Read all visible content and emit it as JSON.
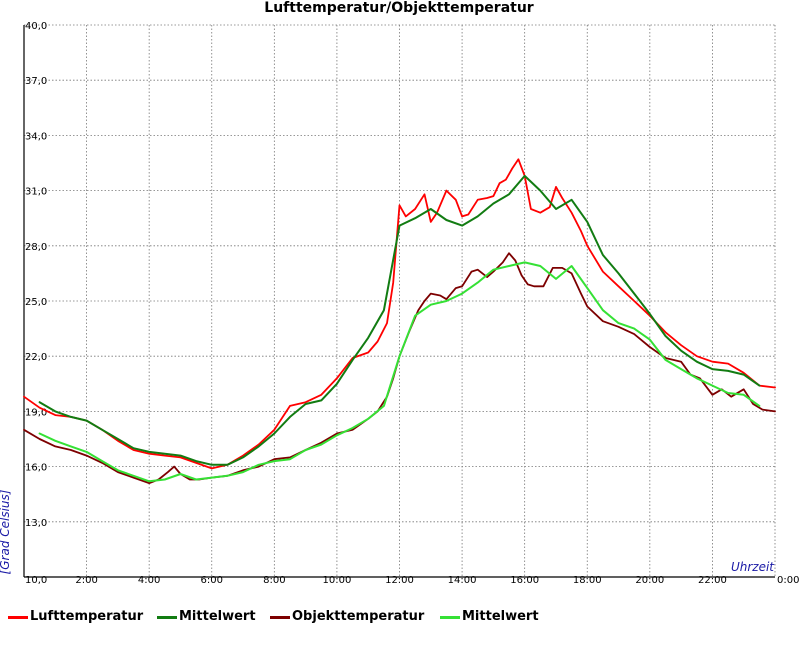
{
  "chart_data": {
    "type": "line",
    "title": "Lufttemperatur/Objekttemperatur",
    "xlabel": "Uhrzeit",
    "ylabel": "[Grad Celsius]",
    "xlim": [
      0,
      24
    ],
    "ylim": [
      10.0,
      40.0
    ],
    "x_ticks": [
      "",
      "2:00",
      "4:00",
      "6:00",
      "8:00",
      "10:00",
      "12:00",
      "14:00",
      "16:00",
      "18:00",
      "20:00",
      "22:00",
      "0:00"
    ],
    "y_ticks": [
      "10,0",
      "13,0",
      "16,0",
      "19,0",
      "22,0",
      "25,0",
      "28,0",
      "31,0",
      "34,0",
      "37,0",
      "40,0"
    ],
    "grid": true,
    "legend_position": "bottom",
    "series": [
      {
        "name": "Lufttemperatur",
        "color": "#ff0000",
        "x": [
          0,
          0.5,
          1,
          1.5,
          2,
          2.5,
          3,
          3.5,
          4,
          4.5,
          5,
          5.5,
          6,
          6.5,
          7,
          7.5,
          8,
          8.5,
          9,
          9.5,
          10,
          10.5,
          11,
          11.3,
          11.6,
          11.8,
          12,
          12.2,
          12.5,
          12.8,
          13,
          13.2,
          13.5,
          13.8,
          14,
          14.2,
          14.5,
          14.8,
          15,
          15.2,
          15.4,
          15.6,
          15.8,
          16,
          16.2,
          16.5,
          16.8,
          17,
          17.2,
          17.5,
          17.8,
          18,
          18.5,
          19,
          19.5,
          20,
          20.5,
          21,
          21.5,
          22,
          22.5,
          23,
          23.5,
          24
        ],
        "y": [
          19.8,
          19.2,
          18.8,
          18.7,
          18.5,
          18.0,
          17.4,
          16.9,
          16.7,
          16.6,
          16.5,
          16.2,
          15.9,
          16.1,
          16.6,
          17.2,
          18.0,
          19.3,
          19.5,
          19.9,
          20.8,
          21.9,
          22.2,
          22.8,
          23.8,
          26.0,
          30.2,
          29.6,
          30.0,
          30.8,
          29.3,
          29.8,
          31.0,
          30.5,
          29.6,
          29.7,
          30.5,
          30.6,
          30.7,
          31.4,
          31.6,
          32.2,
          32.7,
          31.8,
          30.0,
          29.8,
          30.1,
          31.2,
          30.6,
          29.8,
          28.8,
          28.0,
          26.6,
          25.8,
          25.0,
          24.2,
          23.3,
          22.6,
          22.0,
          21.7,
          21.6,
          21.1,
          20.4,
          20.3
        ]
      },
      {
        "name": "Mittelwert",
        "color": "#127c12",
        "x": [
          0.5,
          1,
          1.5,
          2,
          2.5,
          3,
          3.5,
          4,
          4.5,
          5,
          5.5,
          6,
          6.5,
          7,
          7.5,
          8,
          8.5,
          9,
          9.5,
          10,
          10.5,
          11,
          11.5,
          12,
          12.5,
          13,
          13.5,
          14,
          14.5,
          15,
          15.5,
          16,
          16.5,
          17,
          17.5,
          18,
          18.5,
          19,
          19.5,
          20,
          20.5,
          21,
          21.5,
          22,
          22.5,
          23,
          23.5
        ],
        "y": [
          19.5,
          19.0,
          18.7,
          18.5,
          18.0,
          17.5,
          17.0,
          16.8,
          16.7,
          16.6,
          16.3,
          16.1,
          16.1,
          16.5,
          17.1,
          17.8,
          18.7,
          19.4,
          19.6,
          20.5,
          21.8,
          23.0,
          24.5,
          29.1,
          29.5,
          30.0,
          29.4,
          29.1,
          29.6,
          30.3,
          30.8,
          31.8,
          31.0,
          30.0,
          30.5,
          29.3,
          27.5,
          26.5,
          25.4,
          24.3,
          23.1,
          22.3,
          21.7,
          21.3,
          21.2,
          21.0,
          20.4
        ]
      },
      {
        "name": "Objekttemperatur",
        "color": "#7d0000",
        "x": [
          0,
          0.5,
          1,
          1.5,
          2,
          2.5,
          3,
          3.5,
          4,
          4.3,
          4.6,
          4.8,
          5,
          5.3,
          5.6,
          6,
          6.5,
          7,
          7.5,
          8,
          8.5,
          9,
          9.5,
          10,
          10.5,
          11,
          11.3,
          11.6,
          11.8,
          12,
          12.3,
          12.6,
          12.8,
          13,
          13.3,
          13.5,
          13.8,
          14,
          14.3,
          14.5,
          14.8,
          15,
          15.3,
          15.5,
          15.7,
          15.9,
          16.1,
          16.3,
          16.6,
          16.9,
          17.2,
          17.5,
          17.8,
          18,
          18.5,
          19,
          19.5,
          20,
          20.5,
          21,
          21.3,
          21.6,
          22,
          22.3,
          22.6,
          23,
          23.3,
          23.6,
          24
        ],
        "y": [
          18.0,
          17.5,
          17.1,
          16.9,
          16.6,
          16.2,
          15.7,
          15.4,
          15.1,
          15.3,
          15.7,
          16.0,
          15.6,
          15.3,
          15.3,
          15.4,
          15.5,
          15.8,
          16.0,
          16.4,
          16.5,
          16.9,
          17.3,
          17.8,
          18.0,
          18.6,
          19.0,
          19.8,
          20.8,
          22.0,
          23.3,
          24.5,
          25.0,
          25.4,
          25.3,
          25.1,
          25.7,
          25.8,
          26.6,
          26.7,
          26.3,
          26.6,
          27.1,
          27.6,
          27.2,
          26.4,
          25.9,
          25.8,
          25.8,
          26.8,
          26.8,
          26.5,
          25.4,
          24.7,
          23.9,
          23.6,
          23.2,
          22.5,
          21.9,
          21.7,
          21.0,
          20.8,
          19.9,
          20.2,
          19.8,
          20.2,
          19.4,
          19.1,
          19.0
        ]
      },
      {
        "name": "Mittelwert",
        "color": "#35e135",
        "x": [
          0.5,
          1,
          1.5,
          2,
          2.5,
          3,
          3.5,
          4,
          4.5,
          5,
          5.5,
          6,
          6.5,
          7,
          7.5,
          8,
          8.5,
          9,
          9.5,
          10,
          10.5,
          11,
          11.5,
          12,
          12.5,
          13,
          13.5,
          14,
          14.5,
          15,
          15.5,
          16,
          16.5,
          17,
          17.5,
          18,
          18.5,
          19,
          19.5,
          20,
          20.5,
          21,
          21.5,
          22,
          22.5,
          23,
          23.5
        ],
        "y": [
          17.8,
          17.4,
          17.1,
          16.8,
          16.3,
          15.8,
          15.5,
          15.2,
          15.3,
          15.6,
          15.3,
          15.4,
          15.5,
          15.7,
          16.1,
          16.3,
          16.4,
          16.9,
          17.2,
          17.7,
          18.1,
          18.6,
          19.3,
          22.0,
          24.2,
          24.8,
          25.0,
          25.4,
          26.0,
          26.7,
          26.9,
          27.1,
          26.9,
          26.2,
          26.9,
          25.7,
          24.5,
          23.8,
          23.5,
          22.9,
          21.8,
          21.3,
          20.8,
          20.4,
          20.0,
          19.9,
          19.3
        ]
      }
    ]
  }
}
